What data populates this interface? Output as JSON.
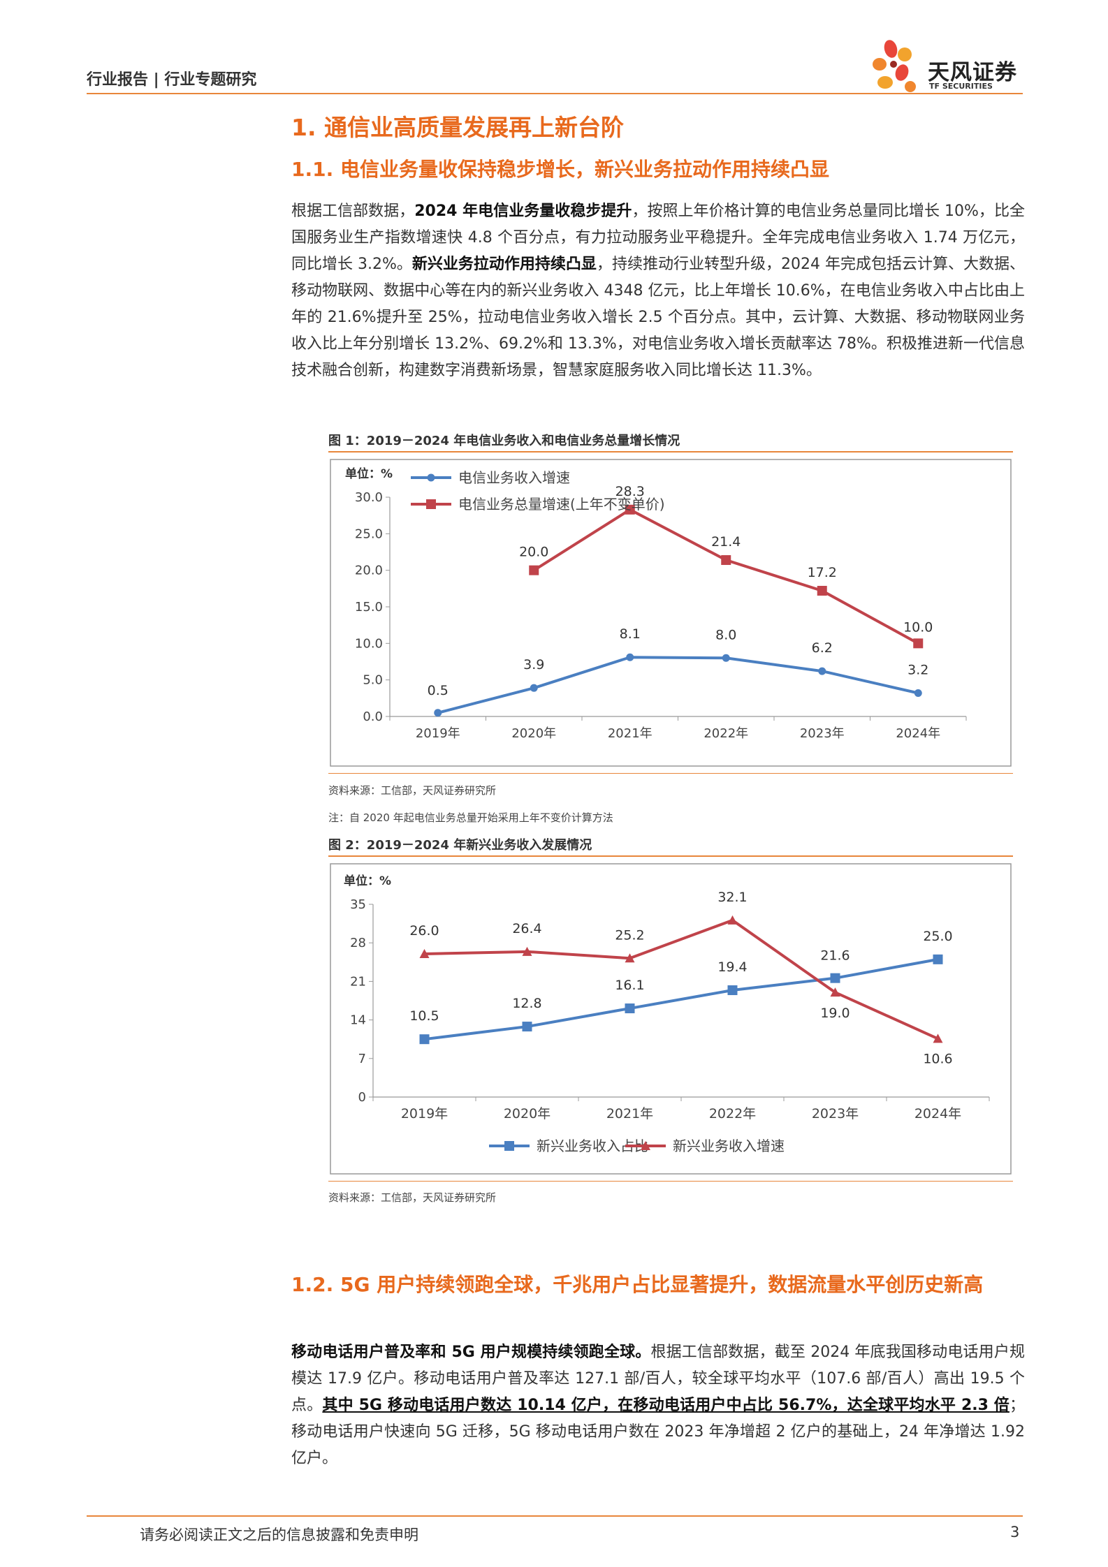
{
  "header": {
    "left": "行业报告 | 行业专题研究",
    "logo_cn": "天风证券",
    "logo_en": "TF SECURITIES"
  },
  "sections": {
    "h1": "1. 通信业高质量发展再上新台阶",
    "h2_1": "1.1. 电信业务量收保持稳步增长，新兴业务拉动作用持续凸显",
    "h2_2": "1.2. 5G 用户持续领跑全球，千兆用户占比显著提升，数据流量水平创历史新高"
  },
  "para1": {
    "s1": "根据工信部数据，",
    "s2": "2024 年电信业务量收稳步提升",
    "s3": "，按照上年价格计算的电信业务总量同比增长 10%，比全国服务业生产指数增速快 4.8 个百分点，有力拉动服务业平稳提升。全年完成电信业务收入 1.74 万亿元，同比增长 3.2%。",
    "s4": "新兴业务拉动作用持续凸显",
    "s5": "，持续推动行业转型升级，2024 年完成包括云计算、大数据、移动物联网、数据中心等在内的新兴业务收入 4348 亿元，比上年增长 10.6%，在电信业务收入中占比由上年的 21.6%提升至 25%，拉动电信业务收入增长 2.5 个百分点。其中，云计算、大数据、移动物联网业务收入比上年分别增长 13.2%、69.2%和 13.3%，对电信业务收入增长贡献率达 78%。积极推进新一代信息技术融合创新，构建数字消费新场景，智慧家庭服务收入同比增长达 11.3%。"
  },
  "para2": {
    "s1": "移动电话用户普及率和 5G 用户规模持续领跑全球。",
    "s2": "根据工信部数据，截至 2024 年底我国移动电话用户规模达 17.9 亿户。移动电话用户普及率达 127.1 部/百人，较全球平均水平（107.6 部/百人）高出 19.5 个点。",
    "s3": "其中 5G 移动电话用户数达 10.14 亿户，在移动电话用户中占比 56.7%，达全球平均水平 2.3 倍",
    "s4": "；移动电话用户快速向 5G 迁移，5G 移动电话用户数在 2023 年净增超 2 亿户的基础上，24 年净增达 1.92 亿户。"
  },
  "figure1": {
    "title": "图 1：2019－2024 年电信业务收入和电信业务总量增长情况",
    "source": "资料来源：工信部，天风证券研究所",
    "note": "注：自 2020 年起电信业务总量开始采用上年不变价计算方法"
  },
  "figure2": {
    "title": "图 2：2019－2024 年新兴业务收入发展情况",
    "source": "资料来源：工信部，天风证券研究所"
  },
  "chart_data": [
    {
      "type": "line",
      "unit_label": "单位：%",
      "categories": [
        "2019年",
        "2020年",
        "2021年",
        "2022年",
        "2023年",
        "2024年"
      ],
      "ylim": [
        0,
        30
      ],
      "yticks": [
        "0.0",
        "5.0",
        "10.0",
        "15.0",
        "20.0",
        "25.0",
        "30.0"
      ],
      "legend_position": "top-left",
      "grid": false,
      "series": [
        {
          "name": "电信业务收入增速",
          "color": "#4a7fc1",
          "marker": "circle",
          "values": [
            0.5,
            3.9,
            8.1,
            8.0,
            6.2,
            3.2
          ],
          "labels": [
            "0.5",
            "3.9",
            "8.1",
            "8.0",
            "6.2",
            "3.2"
          ]
        },
        {
          "name": "电信业务总量增速(上年不变单价)",
          "color": "#c0434a",
          "marker": "square",
          "values": [
            null,
            20.0,
            28.3,
            21.4,
            17.2,
            10.0
          ],
          "labels": [
            "",
            "20.0",
            "28.3",
            "21.4",
            "17.2",
            "10.0"
          ]
        }
      ]
    },
    {
      "type": "line",
      "unit_label": "单位：%",
      "categories": [
        "2019年",
        "2020年",
        "2021年",
        "2022年",
        "2023年",
        "2024年"
      ],
      "ylim": [
        0,
        35
      ],
      "yticks": [
        "0",
        "7",
        "14",
        "21",
        "28",
        "35"
      ],
      "legend_position": "bottom",
      "grid": false,
      "series": [
        {
          "name": "新兴业务收入占比",
          "color": "#4a7fc1",
          "marker": "square",
          "values": [
            10.5,
            12.8,
            16.1,
            19.4,
            21.6,
            25.0
          ],
          "labels": [
            "10.5",
            "12.8",
            "16.1",
            "19.4",
            "21.6",
            "25.0"
          ]
        },
        {
          "name": "新兴业务收入增速",
          "color": "#c0434a",
          "marker": "triangle",
          "values": [
            26.0,
            26.4,
            25.2,
            32.1,
            19.0,
            10.6
          ],
          "labels": [
            "26.0",
            "26.4",
            "25.2",
            "32.1",
            "19.0",
            "10.6"
          ]
        }
      ]
    }
  ],
  "footer": {
    "disclaimer": "请务必阅读正文之后的信息披露和免责申明",
    "page": "3"
  }
}
